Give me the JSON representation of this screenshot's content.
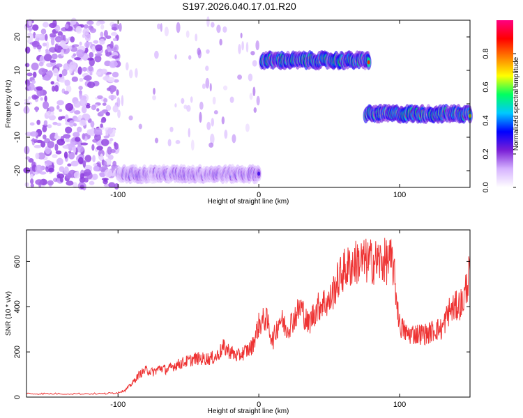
{
  "title": "S197.2026.040.17.01.R20",
  "chart_data": [
    {
      "type": "heatmap",
      "xlabel": "Height of straight line (km)",
      "ylabel": "Frequency (Hz)",
      "xlim": [
        -165,
        150
      ],
      "ylim": [
        -25,
        25
      ],
      "x_ticks": [
        -100,
        0,
        100
      ],
      "y_ticks": [
        20,
        10,
        0,
        -10,
        -20
      ],
      "colorbar": {
        "label": "Normalized spectral amplitude",
        "range": [
          0,
          1
        ],
        "ticks": [
          "0.0",
          "0.2",
          "0.4",
          "0.6",
          "0.8"
        ],
        "colors": [
          "#ffffff",
          "#d6b3ff",
          "#7a1fd6",
          "#0000ff",
          "#00c8ff",
          "#00ff60",
          "#ffff00",
          "#ff8000",
          "#ff0000",
          "#ff0080"
        ]
      },
      "signal_tracks": [
        {
          "x_start": -100,
          "x_end": 0,
          "freq": -21,
          "peak": 0.35
        },
        {
          "x_start": 2,
          "x_end": 78,
          "freq": 13,
          "peak": 0.95
        },
        {
          "x_start": 76,
          "x_end": 150,
          "freq": -3,
          "peak": 0.95
        }
      ]
    },
    {
      "type": "line",
      "xlabel": "Height of straight line (km)",
      "ylabel": "SNR (10 * v/v)",
      "xlim": [
        -165,
        150
      ],
      "ylim": [
        0,
        740
      ],
      "x_ticks": [
        -100,
        0,
        100
      ],
      "y_ticks": [
        0,
        200,
        400,
        600
      ],
      "color": "#ee3333",
      "x": [
        -165,
        -150,
        -130,
        -110,
        -100,
        -95,
        -90,
        -85,
        -80,
        -75,
        -70,
        -65,
        -60,
        -55,
        -50,
        -45,
        -40,
        -35,
        -30,
        -25,
        -20,
        -15,
        -10,
        -5,
        0,
        5,
        10,
        15,
        20,
        25,
        30,
        35,
        40,
        45,
        50,
        55,
        60,
        65,
        70,
        75,
        80,
        85,
        90,
        95,
        100,
        105,
        110,
        115,
        120,
        125,
        130,
        135,
        140,
        145,
        150
      ],
      "y": [
        15,
        15,
        15,
        15,
        20,
        30,
        60,
        100,
        120,
        110,
        130,
        120,
        140,
        150,
        160,
        170,
        170,
        170,
        180,
        220,
        200,
        180,
        200,
        220,
        320,
        350,
        250,
        350,
        300,
        350,
        400,
        320,
        380,
        420,
        420,
        500,
        560,
        580,
        600,
        600,
        600,
        600,
        600,
        600,
        320,
        280,
        280,
        280,
        280,
        300,
        300,
        380,
        400,
        420,
        560
      ]
    }
  ]
}
